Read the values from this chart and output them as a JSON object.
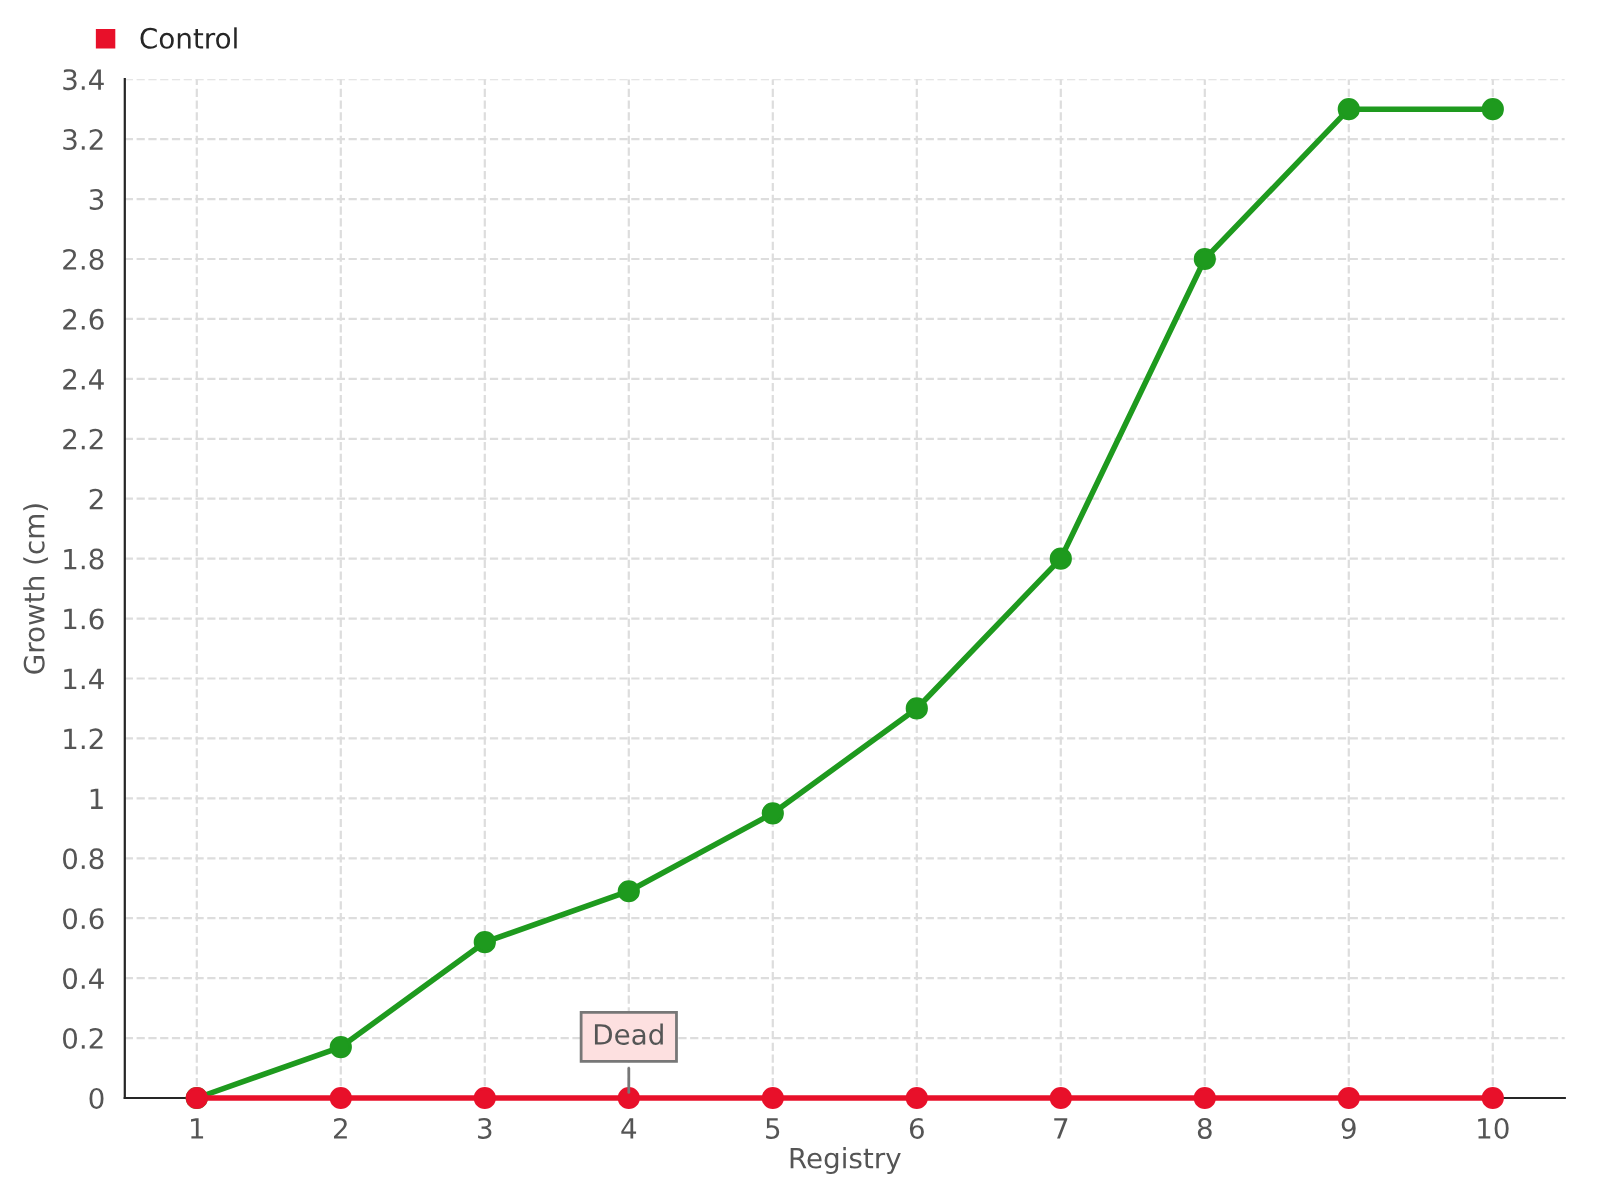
{
  "chart_data": {
    "type": "line",
    "xlabel": "Registry",
    "ylabel": "Growth (cm)",
    "categories": [
      "1",
      "2",
      "3",
      "4",
      "5",
      "6",
      "7",
      "8",
      "9",
      "10"
    ],
    "series": [
      {
        "color": "#1e9a1e",
        "values": [
          0,
          0.17,
          0.52,
          0.69,
          0.95,
          1.3,
          1.8,
          2.8,
          3.3,
          3.3
        ]
      },
      {
        "name": "Control",
        "color": "#e8102a",
        "values": [
          0,
          0,
          0,
          0,
          0,
          0,
          0,
          0,
          0,
          0
        ]
      }
    ],
    "ylim": [
      0,
      3.4
    ],
    "yticks": [
      {
        "value": 0,
        "label": "0"
      },
      {
        "value": 0.2,
        "label": "0.2"
      },
      {
        "value": 0.4,
        "label": "0.4"
      },
      {
        "value": 0.6,
        "label": "0.6"
      },
      {
        "value": 0.8,
        "label": "0.8"
      },
      {
        "value": 1,
        "label": "1"
      },
      {
        "value": 1.2,
        "label": "1.2"
      },
      {
        "value": 1.4,
        "label": "1.4"
      },
      {
        "value": 1.6,
        "label": "1.6"
      },
      {
        "value": 1.8,
        "label": "1.8"
      },
      {
        "value": 2,
        "label": "2"
      },
      {
        "value": 2.2,
        "label": "2.2"
      },
      {
        "value": 2.4,
        "label": "2.4"
      },
      {
        "value": 2.6,
        "label": "2.6"
      },
      {
        "value": 2.8,
        "label": "2.8"
      },
      {
        "value": 3,
        "label": "3"
      },
      {
        "value": 3.2,
        "label": "3.2"
      },
      {
        "value": 3.4,
        "label": "3.4"
      }
    ],
    "annotations": [
      {
        "text": "Dead",
        "x": "4",
        "y": 0
      }
    ],
    "grid": true,
    "legend": "top left",
    "marker": "circle",
    "line_style": "solid"
  }
}
